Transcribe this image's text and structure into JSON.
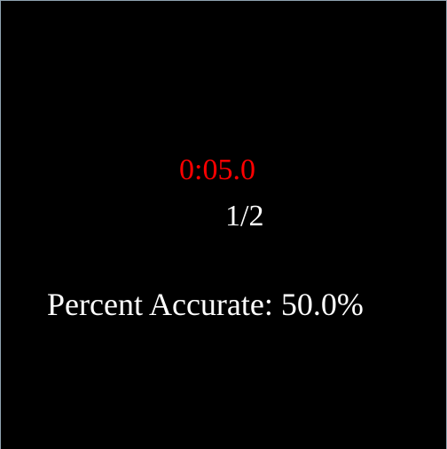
{
  "game": {
    "timer": "0:05.0",
    "progress": "1/2",
    "accuracy_text": "Percent Accurate: 50.0%"
  },
  "colors": {
    "background": "#000000",
    "timer": "#ff0000",
    "text": "#ffffff"
  }
}
